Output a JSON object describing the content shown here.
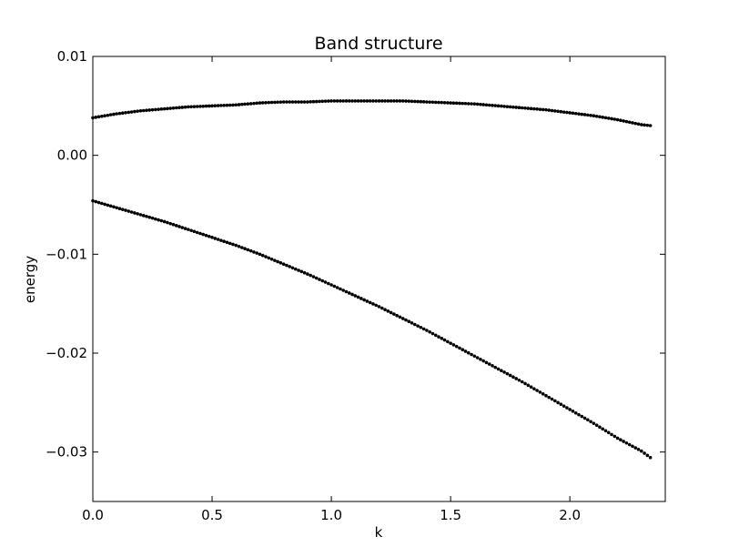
{
  "chart_data": {
    "type": "scatter",
    "title": "Band structure",
    "xlabel": "k",
    "ylabel": "energy",
    "xlim": [
      0.0,
      2.4
    ],
    "ylim": [
      -0.035,
      0.01
    ],
    "xticks": [
      0.0,
      0.5,
      1.0,
      1.5,
      2.0
    ],
    "xtick_labels": [
      "0.0",
      "0.5",
      "1.0",
      "1.5",
      "2.0"
    ],
    "yticks": [
      0.01,
      0.0,
      -0.01,
      -0.02,
      -0.03
    ],
    "ytick_labels": [
      "0.01",
      "0.00",
      "−0.01",
      "−0.02",
      "−0.03"
    ],
    "grid": false,
    "marker_color": "#000000",
    "series": [
      {
        "x": [
          0.0,
          0.1,
          0.2,
          0.3,
          0.4,
          0.5,
          0.6,
          0.7,
          0.8,
          0.9,
          1.0,
          1.1,
          1.2,
          1.3,
          1.4,
          1.5,
          1.6,
          1.7,
          1.8,
          1.9,
          2.0,
          2.1,
          2.2,
          2.3,
          2.34
        ],
        "values": [
          0.0038,
          0.0042,
          0.0045,
          0.0047,
          0.0049,
          0.005,
          0.0051,
          0.0053,
          0.0054,
          0.0054,
          0.0055,
          0.0055,
          0.0055,
          0.0055,
          0.0054,
          0.0053,
          0.0052,
          0.005,
          0.0048,
          0.0046,
          0.0043,
          0.004,
          0.0036,
          0.0031,
          0.003
        ]
      },
      {
        "x": [
          0.0,
          0.1,
          0.2,
          0.3,
          0.4,
          0.5,
          0.6,
          0.7,
          0.8,
          0.9,
          1.0,
          1.1,
          1.2,
          1.3,
          1.4,
          1.5,
          1.6,
          1.7,
          1.8,
          1.9,
          2.0,
          2.1,
          2.2,
          2.3,
          2.34
        ],
        "values": [
          -0.0046,
          -0.0053,
          -0.006,
          -0.0067,
          -0.0075,
          -0.0083,
          -0.0091,
          -0.01,
          -0.011,
          -0.012,
          -0.0131,
          -0.0142,
          -0.0153,
          -0.0165,
          -0.0177,
          -0.019,
          -0.0203,
          -0.0216,
          -0.0229,
          -0.0243,
          -0.0257,
          -0.0271,
          -0.0286,
          -0.0299,
          -0.0306
        ]
      }
    ]
  }
}
